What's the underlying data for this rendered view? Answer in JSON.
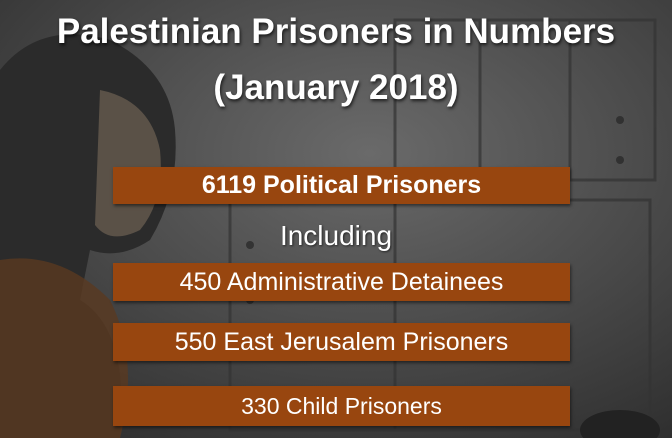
{
  "title": "Palestinian Prisoners in Numbers",
  "subtitle": "(January 2018)",
  "headline": "6119 Political Prisoners",
  "connector": "Including",
  "items": [
    "450 Administrative Detainees",
    "550 East Jerusalem Prisoners",
    "330 Child Prisoners"
  ]
}
